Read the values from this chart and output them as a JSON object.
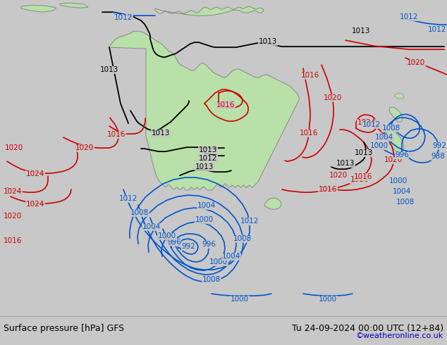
{
  "title_left": "Surface pressure [hPa] GFS",
  "title_right": "Tu 24-09-2024 00:00 UTC (12+84)",
  "credit": "©weatheronline.co.uk",
  "bg_color": "#c8c8c8",
  "land_color": "#b8e0a8",
  "land_edge": "#888888",
  "isobar_black": "#000000",
  "isobar_blue": "#0055cc",
  "isobar_red": "#cc0000",
  "figsize": [
    6.34,
    4.9
  ],
  "dpi": 100,
  "bar_color": "#d8d8d8",
  "text_color": "#000000",
  "credit_color": "#0000cc"
}
